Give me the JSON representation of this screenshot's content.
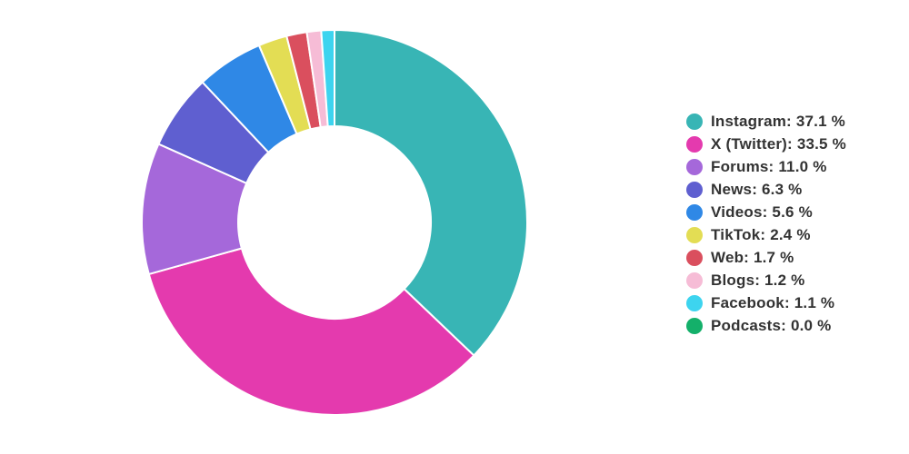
{
  "chart_data": {
    "type": "pie",
    "donut": true,
    "legend_placement": "right",
    "value_suffix": " %",
    "slices": [
      {
        "label": "Instagram",
        "value": 37.1,
        "color": "#38b5b5"
      },
      {
        "label": "X (Twitter)",
        "value": 33.5,
        "color": "#e43aae"
      },
      {
        "label": "Forums",
        "value": 11.0,
        "color": "#a568da"
      },
      {
        "label": "News",
        "value": 6.3,
        "color": "#5f5fd0"
      },
      {
        "label": "Videos",
        "value": 5.6,
        "color": "#2f88e6"
      },
      {
        "label": "TikTok",
        "value": 2.4,
        "color": "#e3dd54"
      },
      {
        "label": "Web",
        "value": 1.7,
        "color": "#da4f5e"
      },
      {
        "label": "Blogs",
        "value": 1.2,
        "color": "#f6bcd6"
      },
      {
        "label": "Facebook",
        "value": 1.1,
        "color": "#3dd4ef"
      },
      {
        "label": "Podcasts",
        "value": 0.0,
        "color": "#14b06a"
      }
    ]
  }
}
